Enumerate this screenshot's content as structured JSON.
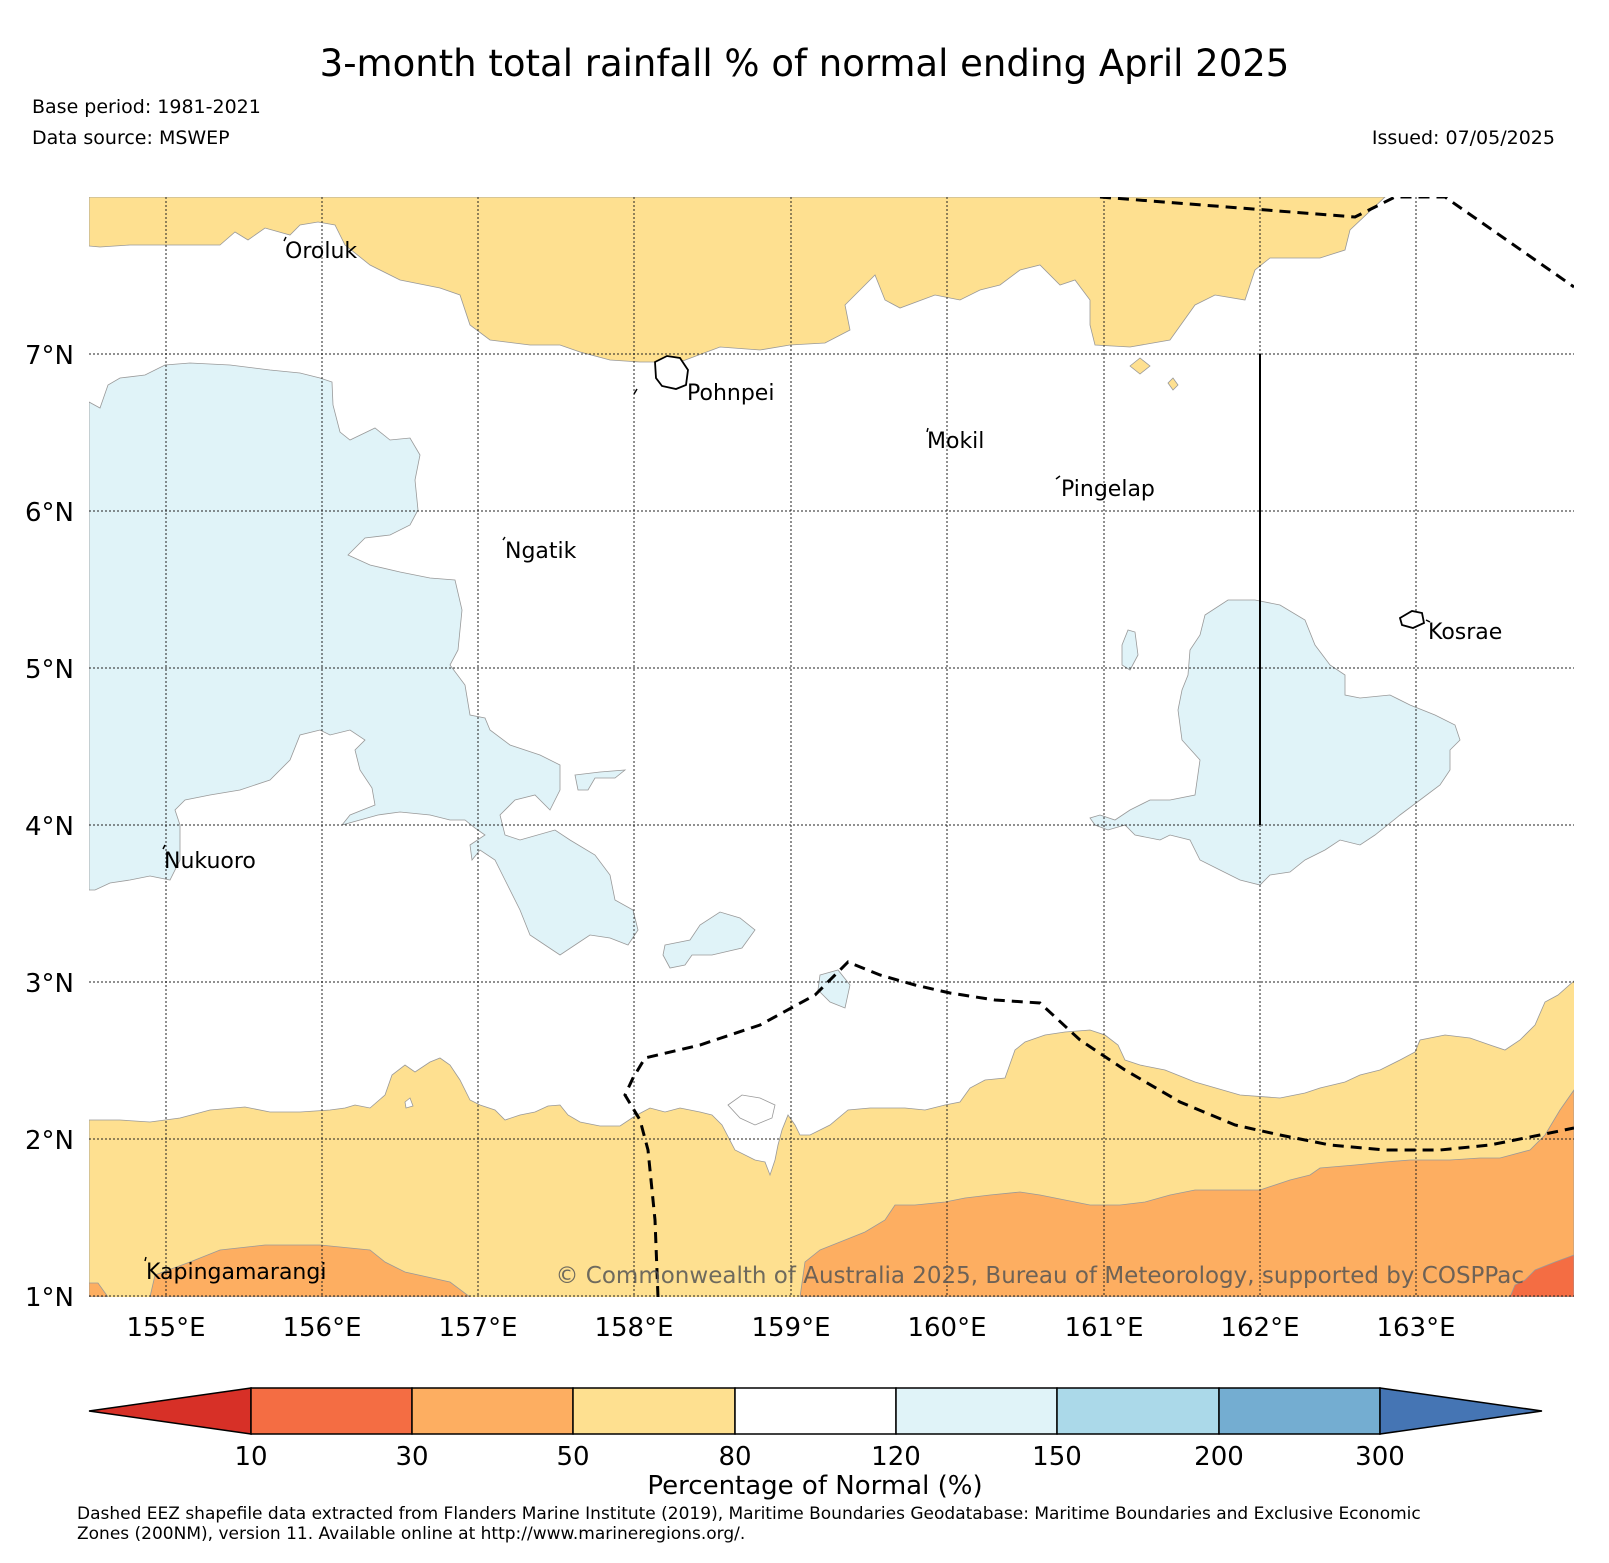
{
  "title": "3-month total rainfall % of normal ending April 2025",
  "base_period": "Base period: 1981-2021",
  "data_source": "Data source: MSWEP",
  "issued": "Issued: 07/05/2025",
  "copyright": "© Commonwealth of Australia 2025, Bureau of Meteorology, supported by COSPPac",
  "lat_labels": [
    "7°N",
    "6°N",
    "5°N",
    "4°N",
    "3°N",
    "2°N",
    "1°N"
  ],
  "lon_labels": [
    "155°E",
    "156°E",
    "157°E",
    "158°E",
    "159°E",
    "160°E",
    "161°E",
    "162°E",
    "163°E"
  ],
  "islands": [
    "Oroluk",
    "Pohnpei",
    "Mokil",
    "Pingelap",
    "Ngatik",
    "Kosrae",
    "Nukuoro",
    "Kapingamarangi"
  ],
  "legend": {
    "title": "Percentage of Normal (%)",
    "ticks": [
      "10",
      "30",
      "50",
      "80",
      "120",
      "150",
      "200",
      "300"
    ],
    "colors": [
      "#d73027",
      "#f46d43",
      "#fdae61",
      "#fee090",
      "#ffffff",
      "#e0f3f8",
      "#abd9e9",
      "#74add1",
      "#4575b4"
    ]
  },
  "footer": {
    "line1": "Dashed EEZ shapefile data extracted from Flanders Marine Institute (2019), Maritime Boundaries Geodatabase: Maritime Boundaries and Exclusive Economic",
    "line2": "Zones (200NM), version 11. Available online at http://www.marineregions.org/."
  }
}
